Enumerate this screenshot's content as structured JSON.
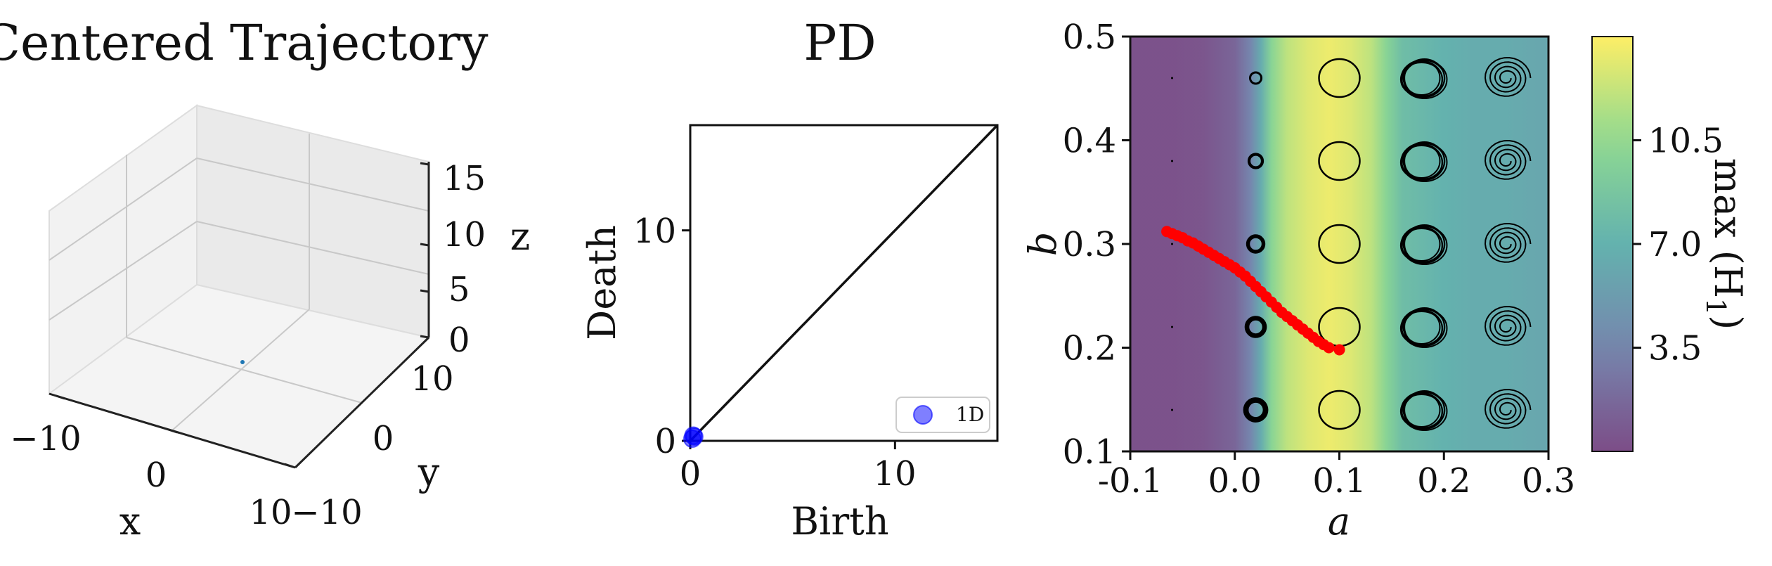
{
  "chart_data": [
    {
      "type": "scatter",
      "subtype": "3d-trajectory",
      "title": "Centered Trajectory",
      "xlabel": "x",
      "ylabel": "y",
      "zlabel": "z",
      "x_ticks": [
        "−10",
        "0",
        "10"
      ],
      "y_ticks": [
        "−10",
        "0",
        "10"
      ],
      "z_ticks": [
        "0",
        "5",
        "10",
        "15"
      ],
      "xlim": [
        -10,
        10
      ],
      "ylim": [
        -10,
        10
      ],
      "zlim": [
        0,
        15
      ],
      "grid": true,
      "points": [
        {
          "x": 0,
          "y": 0,
          "z": 0
        }
      ],
      "point_color": "#1f77b4"
    },
    {
      "type": "scatter",
      "subtype": "persistence-diagram",
      "title": "PD",
      "xlabel": "Birth",
      "ylabel": "Death",
      "x_ticks": [
        "0",
        "10"
      ],
      "y_ticks": [
        "0",
        "10"
      ],
      "xlim": [
        0,
        15
      ],
      "ylim": [
        0,
        15
      ],
      "diagonal": true,
      "legend": {
        "position": "bottom-right",
        "entries": [
          "1D"
        ]
      },
      "series": [
        {
          "name": "1D",
          "color": "#0000ff",
          "points": [
            [
              0.1,
              0.1
            ],
            [
              0.2,
              0.2
            ],
            [
              0.15,
              0.25
            ]
          ]
        }
      ]
    },
    {
      "type": "heatmap",
      "xlabel": "a",
      "ylabel": "b",
      "xlim": [
        -0.1,
        0.3
      ],
      "ylim": [
        0.1,
        0.5
      ],
      "x_ticks": [
        "-0.1",
        "0.0",
        "0.1",
        "0.2",
        "0.3"
      ],
      "y_ticks": [
        "0.1",
        "0.2",
        "0.3",
        "0.4",
        "0.5"
      ],
      "colorbar": {
        "label": "max (H",
        "label_sub": "1",
        "label_end": ")",
        "ticks": [
          "3.5",
          "7.0",
          "10.5"
        ],
        "tick_values": [
          3.5,
          7.0,
          10.5
        ],
        "range": [
          0,
          14
        ],
        "colormap": "viridis"
      },
      "columns": [
        {
          "a": -0.1,
          "value": 0.3
        },
        {
          "a": -0.06,
          "value": 0.3
        },
        {
          "a": -0.03,
          "value": 0.5
        },
        {
          "a": 0.0,
          "value": 1.5
        },
        {
          "a": 0.015,
          "value": 3.5
        },
        {
          "a": 0.025,
          "value": 6.5
        },
        {
          "a": 0.035,
          "value": 10.0
        },
        {
          "a": 0.05,
          "value": 12.0
        },
        {
          "a": 0.07,
          "value": 13.0
        },
        {
          "a": 0.09,
          "value": 13.5
        },
        {
          "a": 0.11,
          "value": 13.0
        },
        {
          "a": 0.13,
          "value": 12.0
        },
        {
          "a": 0.145,
          "value": 10.0
        },
        {
          "a": 0.16,
          "value": 8.0
        },
        {
          "a": 0.18,
          "value": 7.5
        },
        {
          "a": 0.2,
          "value": 7.0
        },
        {
          "a": 0.23,
          "value": 6.5
        },
        {
          "a": 0.26,
          "value": 6.5
        },
        {
          "a": 0.3,
          "value": 6.0
        }
      ],
      "trajectory_insets": {
        "a": [
          -0.06,
          0.02,
          0.1,
          0.18,
          0.26
        ],
        "b": [
          0.14,
          0.22,
          0.3,
          0.38,
          0.46
        ],
        "color": "#000000"
      },
      "red_path": {
        "color": "#ff0000",
        "points": [
          [
            -0.065,
            0.312
          ],
          [
            -0.06,
            0.31
          ],
          [
            -0.055,
            0.308
          ],
          [
            -0.05,
            0.306
          ],
          [
            -0.045,
            0.303
          ],
          [
            -0.04,
            0.301
          ],
          [
            -0.035,
            0.298
          ],
          [
            -0.03,
            0.295
          ],
          [
            -0.025,
            0.292
          ],
          [
            -0.02,
            0.289
          ],
          [
            -0.015,
            0.286
          ],
          [
            -0.01,
            0.283
          ],
          [
            -0.005,
            0.28
          ],
          [
            0.0,
            0.277
          ],
          [
            0.005,
            0.273
          ],
          [
            0.01,
            0.269
          ],
          [
            0.015,
            0.264
          ],
          [
            0.02,
            0.259
          ],
          [
            0.025,
            0.254
          ],
          [
            0.03,
            0.249
          ],
          [
            0.035,
            0.244
          ],
          [
            0.04,
            0.239
          ],
          [
            0.045,
            0.234
          ],
          [
            0.05,
            0.23
          ],
          [
            0.055,
            0.226
          ],
          [
            0.06,
            0.222
          ],
          [
            0.065,
            0.218
          ],
          [
            0.07,
            0.214
          ],
          [
            0.075,
            0.21
          ],
          [
            0.08,
            0.206
          ],
          [
            0.085,
            0.203
          ],
          [
            0.09,
            0.2
          ],
          [
            0.1,
            0.198
          ]
        ]
      }
    }
  ]
}
